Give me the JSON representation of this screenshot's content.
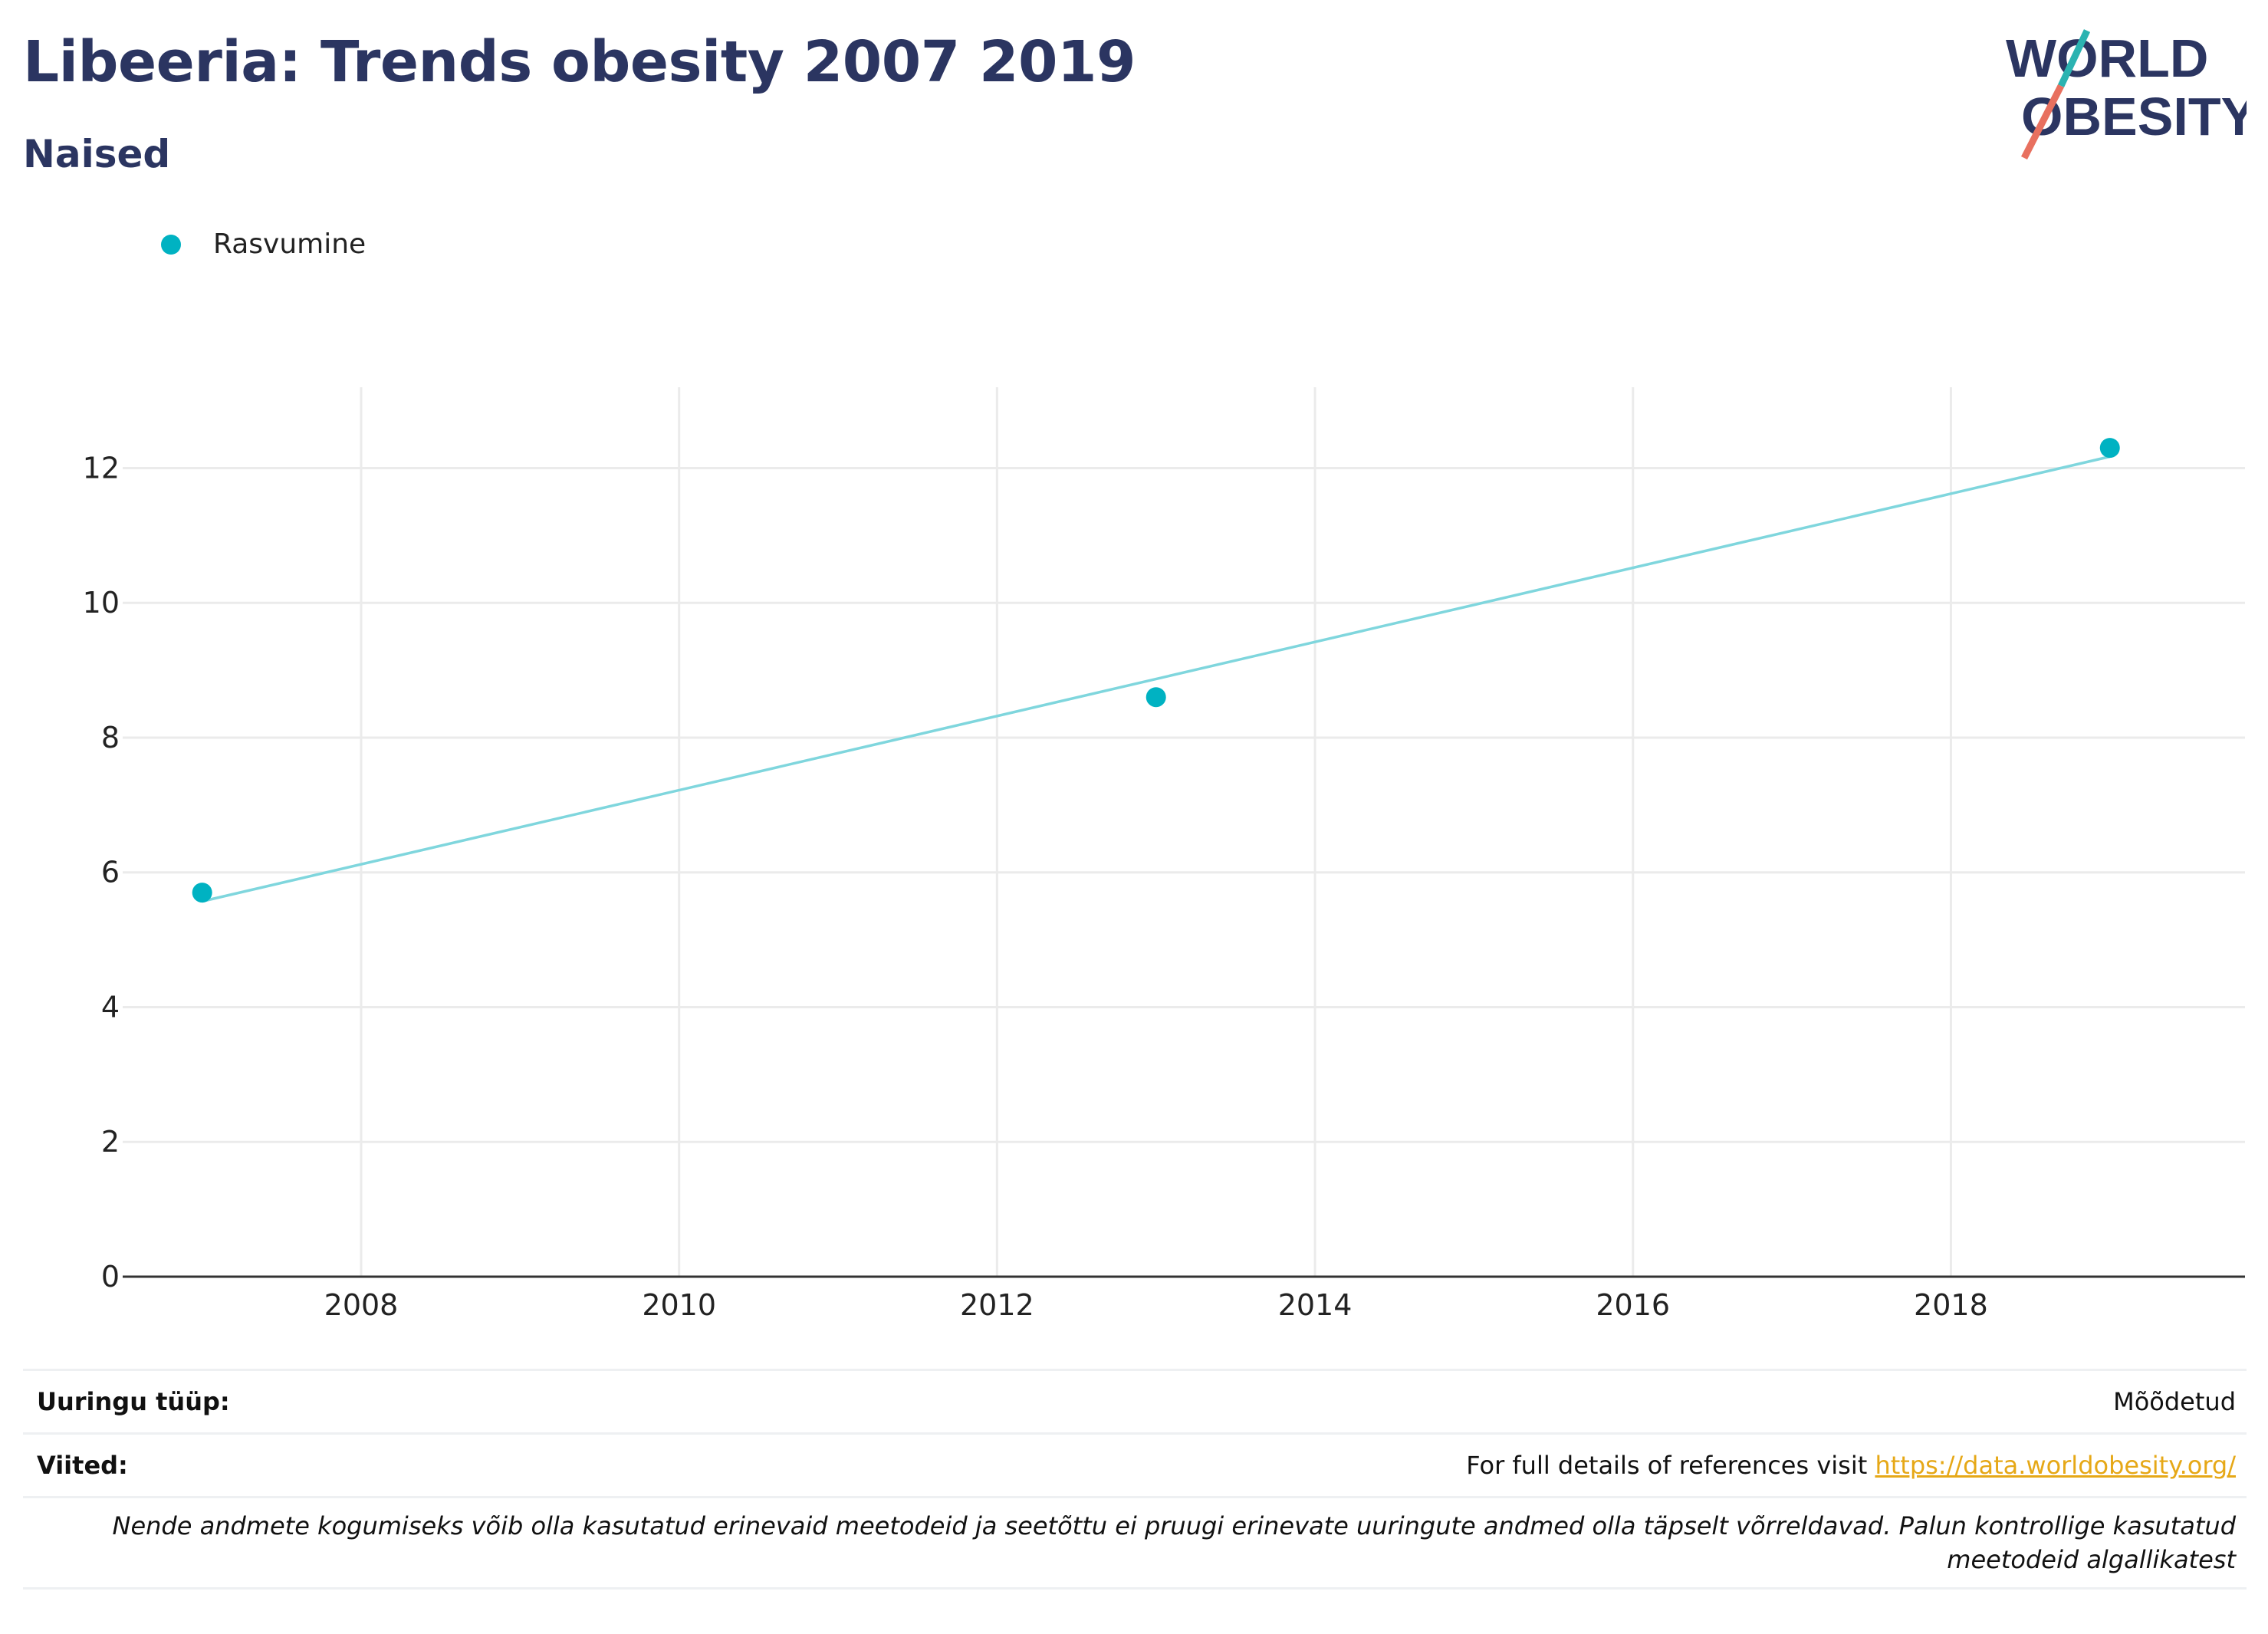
{
  "header": {
    "title": "Libeeria: Trends obesity 2007 2019",
    "subtitle": "Naised"
  },
  "logo": {
    "line1": "WORLD",
    "line2": "OBESITY",
    "accent_teal": "#2bb3b1",
    "accent_coral": "#e8705f",
    "text_color": "#2b3561"
  },
  "legend": {
    "label": "Rasvumine",
    "color": "#00b2c2"
  },
  "chart_data": {
    "type": "scatter",
    "series": [
      {
        "name": "Rasvumine",
        "x": [
          2007,
          2013,
          2019
        ],
        "y": [
          5.7,
          8.6,
          12.3
        ],
        "color": "#00b2c2"
      }
    ],
    "trendline": {
      "x": [
        2007,
        2019
      ],
      "y": [
        5.57,
        12.17
      ],
      "color": "#7fd6dd"
    },
    "xlim": [
      2006.5,
      2019.85
    ],
    "ylim": [
      0,
      13.2
    ],
    "xticks": [
      2008,
      2010,
      2012,
      2014,
      2016,
      2018
    ],
    "yticks": [
      0,
      2,
      4,
      6,
      8,
      10,
      12
    ],
    "grid": true,
    "legend_position": "top-left",
    "xlabel": "",
    "ylabel": ""
  },
  "info": {
    "survey_type_label": "Uuringu tüüp:",
    "survey_type_value": "Mõõdetud",
    "references_label": "Viited:",
    "references_text": "For full details of references visit ",
    "references_link": "https://data.worldobesity.org/",
    "note": "Nende andmete kogumiseks võib olla kasutatud erinevaid meetodeid ja seetõttu ei pruugi erinevate uuringute andmed olla täpselt võrreldavad. Palun kontrollige kasutatud meetodeid algallikatest"
  }
}
